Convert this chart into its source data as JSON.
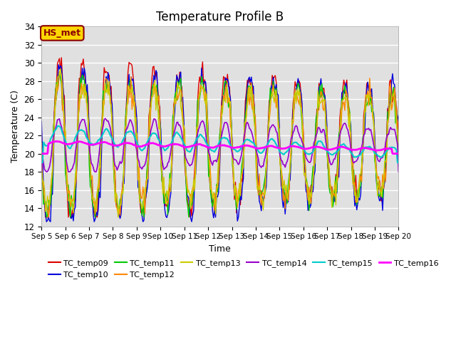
{
  "title": "Temperature Profile B",
  "xlabel": "Time",
  "ylabel": "Temperature (C)",
  "ylim": [
    12,
    34
  ],
  "xlim": [
    0,
    15
  ],
  "xtick_labels": [
    "Sep 5",
    "Sep 6",
    "Sep 7",
    "Sep 8",
    "Sep 9",
    "Sep 10",
    "Sep 11",
    "Sep 12",
    "Sep 13",
    "Sep 14",
    "Sep 15",
    "Sep 16",
    "Sep 17",
    "Sep 18",
    "Sep 19",
    "Sep 20"
  ],
  "annotation_text": "HS_met",
  "series_colors": {
    "TC_temp09": "#dd0000",
    "TC_temp10": "#0000dd",
    "TC_temp11": "#00cc00",
    "TC_temp12": "#ff8800",
    "TC_temp13": "#cccc00",
    "TC_temp14": "#9900cc",
    "TC_temp15": "#00cccc",
    "TC_temp16": "#ff00ff"
  },
  "bg_color": "#e0e0e0",
  "title_fontsize": 12,
  "axis_fontsize": 9
}
